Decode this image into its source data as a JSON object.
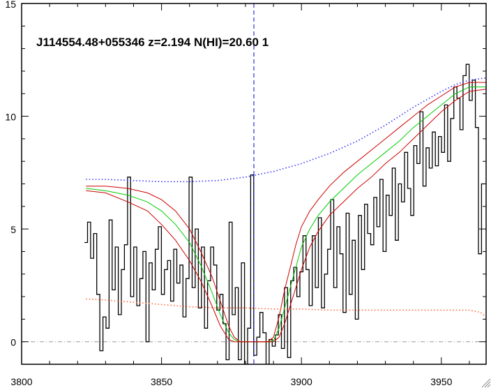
{
  "chart_data": {
    "type": "line",
    "title": "J114554.48+055346 z=2.194 N(HI)=20.60 1",
    "xlabel": "",
    "ylabel": "",
    "xlim": [
      3800,
      3966
    ],
    "ylim": [
      -1,
      15
    ],
    "xticks": [
      3800,
      3850,
      3900,
      3950
    ],
    "yticks": [
      0,
      5,
      10,
      15
    ],
    "grid": false,
    "marker_line_x": 3883,
    "zero_line_y": 0,
    "colors": {
      "flux": "#000000",
      "model": "#00cc00",
      "model_bounds": "#cc0000",
      "continuum": "#3333ff",
      "error": "#ff6633",
      "marker": "#0000cc",
      "zero": "#999999"
    },
    "series": [
      {
        "style": "histogram",
        "color": "#000000",
        "x": [
          3823.0,
          3824.1,
          3825.2,
          3826.3,
          3827.4,
          3828.5,
          3829.6,
          3830.7,
          3831.8,
          3832.9,
          3834.0,
          3835.1,
          3836.2,
          3837.3,
          3838.4,
          3839.5,
          3840.6,
          3841.7,
          3842.8,
          3843.9,
          3845.0,
          3846.1,
          3847.2,
          3848.3,
          3849.4,
          3850.5,
          3851.6,
          3852.7,
          3853.8,
          3854.9,
          3856.0,
          3857.1,
          3858.2,
          3859.3,
          3860.4,
          3861.5,
          3862.6,
          3863.7,
          3864.8,
          3865.9,
          3867.0,
          3868.1,
          3869.2,
          3870.3,
          3871.4,
          3872.5,
          3873.6,
          3874.7,
          3875.8,
          3876.9,
          3878.0,
          3879.1,
          3880.2,
          3881.3,
          3882.4,
          3883.5,
          3884.6,
          3885.7,
          3886.8,
          3887.9,
          3889.0,
          3890.1,
          3891.2,
          3892.3,
          3893.4,
          3894.5,
          3895.6,
          3896.7,
          3897.8,
          3898.9,
          3900.0,
          3901.1,
          3902.2,
          3903.3,
          3904.4,
          3905.5,
          3906.6,
          3907.7,
          3908.8,
          3909.9,
          3911.0,
          3912.1,
          3913.2,
          3914.3,
          3915.4,
          3916.5,
          3917.6,
          3918.7,
          3919.8,
          3920.9,
          3922.0,
          3923.1,
          3924.2,
          3925.3,
          3926.4,
          3927.5,
          3928.6,
          3929.7,
          3930.8,
          3931.9,
          3933.0,
          3934.1,
          3935.2,
          3936.3,
          3937.4,
          3938.5,
          3939.6,
          3940.7,
          3941.8,
          3942.9,
          3944.0,
          3945.1,
          3946.2,
          3947.3,
          3948.4,
          3949.5,
          3950.6,
          3951.7,
          3952.8,
          3953.9,
          3955.0,
          3956.1,
          3957.2,
          3958.3,
          3959.4,
          3960.5,
          3961.6,
          3962.7,
          3963.8,
          3964.9
        ],
        "values": [
          4.4,
          5.3,
          3.7,
          4.8,
          2.1,
          -0.4,
          1.1,
          0.6,
          5.4,
          2.3,
          4.2,
          1.2,
          3.2,
          4.3,
          7.3,
          2.0,
          4.2,
          1.6,
          2.8,
          4.0,
          0.0,
          3.5,
          2.3,
          4.1,
          5.1,
          2.1,
          3.2,
          3.6,
          1.8,
          4.1,
          2.6,
          3.4,
          1.1,
          2.8,
          7.3,
          2.4,
          5.0,
          1.5,
          4.2,
          0.6,
          2.7,
          4.2,
          3.4,
          1.4,
          2.1,
          0.8,
          -0.8,
          5.3,
          1.2,
          2.4,
          -0.8,
          3.5,
          -1.0,
          0.6,
          7.4,
          -0.6,
          0.2,
          1.3,
          0.4,
          -1.0,
          0.1,
          -0.2,
          0.3,
          1.2,
          -0.3,
          2.4,
          -0.7,
          2.7,
          3.3,
          2.0,
          3.1,
          4.7,
          3.2,
          1.6,
          4.7,
          2.4,
          5.5,
          1.5,
          3.0,
          4.1,
          6.3,
          2.4,
          5.1,
          3.9,
          1.3,
          5.7,
          2.1,
          4.5,
          1.0,
          5.6,
          3.2,
          6.1,
          4.8,
          4.3,
          6.4,
          5.1,
          7.2,
          4.0,
          6.5,
          5.6,
          7.7,
          4.5,
          7.0,
          6.2,
          8.4,
          6.8,
          5.6,
          8.7,
          7.9,
          10.2,
          6.9,
          8.6,
          7.7,
          9.3,
          7.8,
          9.1,
          8.4,
          10.5,
          8.0,
          9.9,
          11.3,
          10.8,
          9.4,
          11.8,
          12.3,
          10.7,
          11.6,
          9.5,
          3.9,
          7.0
        ]
      },
      {
        "style": "smooth",
        "color": "#00cc00",
        "x": [
          3823,
          3830,
          3838,
          3845,
          3850,
          3855,
          3860,
          3864,
          3868,
          3871,
          3874,
          3876,
          3878,
          3880,
          3882,
          3884,
          3886,
          3888,
          3890,
          3892,
          3894,
          3896,
          3898,
          3900,
          3903,
          3906,
          3910,
          3915,
          3920,
          3925,
          3930,
          3935,
          3940,
          3945,
          3950,
          3955,
          3960,
          3966
        ],
        "values": [
          6.8,
          6.7,
          6.5,
          6.2,
          5.8,
          5.2,
          4.4,
          3.4,
          2.2,
          1.2,
          0.4,
          0.1,
          0.0,
          0.0,
          0.0,
          0.0,
          0.0,
          0.0,
          0.05,
          0.6,
          1.5,
          2.4,
          3.3,
          4.2,
          5.0,
          5.6,
          6.2,
          6.8,
          7.4,
          7.9,
          8.4,
          8.9,
          9.5,
          10.0,
          10.5,
          11.0,
          11.3,
          11.3
        ]
      },
      {
        "style": "smooth",
        "color": "#cc0000",
        "x": [
          3823,
          3830,
          3838,
          3845,
          3850,
          3855,
          3860,
          3864,
          3868,
          3871,
          3874,
          3876,
          3878,
          3880,
          3882,
          3884,
          3886,
          3888,
          3890,
          3892,
          3894,
          3896,
          3898,
          3900,
          3903,
          3906,
          3910,
          3915,
          3920,
          3925,
          3930,
          3935,
          3940,
          3945,
          3950,
          3955,
          3960,
          3966
        ],
        "values": [
          6.9,
          6.9,
          6.8,
          6.6,
          6.3,
          5.8,
          5.0,
          4.0,
          2.9,
          1.8,
          0.7,
          0.2,
          0.0,
          0.0,
          0.0,
          0.0,
          0.0,
          0.0,
          0.2,
          1.1,
          2.3,
          3.3,
          4.3,
          5.1,
          5.8,
          6.3,
          6.9,
          7.5,
          8.0,
          8.5,
          9.0,
          9.5,
          10.0,
          10.5,
          10.9,
          11.3,
          11.5,
          11.5
        ]
      },
      {
        "style": "smooth",
        "color": "#cc0000",
        "x": [
          3823,
          3830,
          3838,
          3845,
          3850,
          3855,
          3860,
          3864,
          3868,
          3871,
          3874,
          3876,
          3878,
          3880,
          3882,
          3884,
          3886,
          3888,
          3890,
          3892,
          3894,
          3896,
          3898,
          3900,
          3903,
          3906,
          3910,
          3915,
          3920,
          3925,
          3930,
          3935,
          3940,
          3945,
          3950,
          3955,
          3960,
          3966
        ],
        "values": [
          6.7,
          6.6,
          6.2,
          5.8,
          5.2,
          4.5,
          3.6,
          2.7,
          1.6,
          0.7,
          0.1,
          0.0,
          0.0,
          0.0,
          0.0,
          0.0,
          0.0,
          0.0,
          0.0,
          0.2,
          0.8,
          1.6,
          2.4,
          3.2,
          4.2,
          4.9,
          5.6,
          6.2,
          6.8,
          7.3,
          7.9,
          8.4,
          9.0,
          9.6,
          10.2,
          10.7,
          11.1,
          11.2
        ]
      },
      {
        "style": "dotted",
        "color": "#3333ff",
        "x": [
          3823,
          3830,
          3840,
          3850,
          3860,
          3870,
          3880,
          3890,
          3900,
          3910,
          3920,
          3930,
          3940,
          3950,
          3955,
          3960,
          3966
        ],
        "values": [
          7.2,
          7.2,
          7.15,
          7.1,
          7.1,
          7.15,
          7.3,
          7.55,
          7.9,
          8.35,
          8.9,
          9.6,
          10.4,
          11.1,
          11.4,
          11.6,
          11.7
        ]
      },
      {
        "style": "dotted",
        "color": "#ff6633",
        "x": [
          3823,
          3830,
          3840,
          3850,
          3860,
          3870,
          3880,
          3890,
          3900,
          3910,
          3920,
          3930,
          3940,
          3950,
          3960,
          3964,
          3966
        ],
        "values": [
          1.9,
          1.85,
          1.75,
          1.65,
          1.55,
          1.5,
          1.5,
          1.45,
          1.45,
          1.4,
          1.4,
          1.4,
          1.4,
          1.4,
          1.4,
          1.3,
          1.1
        ]
      }
    ]
  }
}
